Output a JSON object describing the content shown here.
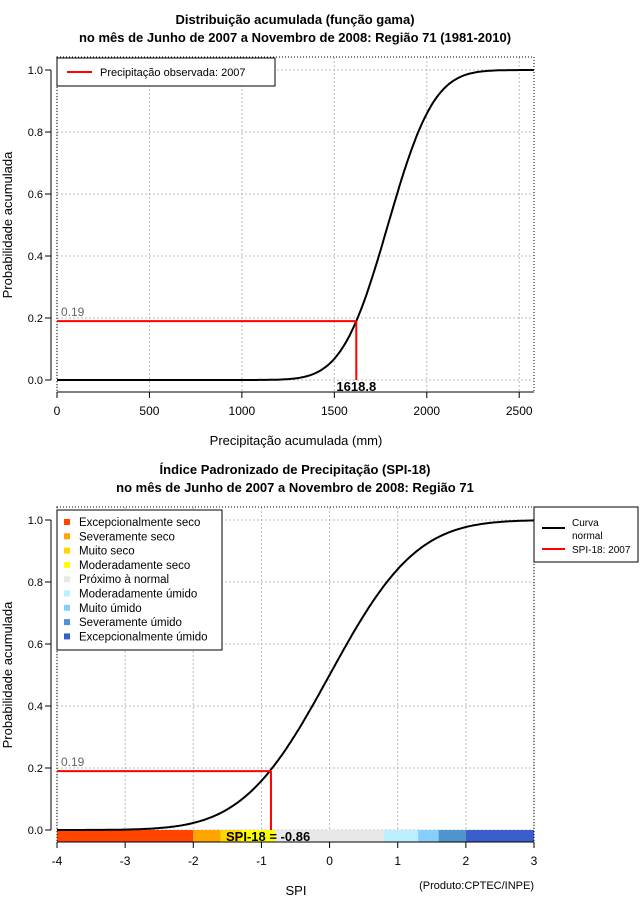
{
  "chart_data": [
    {
      "type": "line",
      "title": "Distribuição acumulada (função gama)",
      "subtitle": "no mês de Junho de 2007 a Novembro de 2008: Região 71 (1981-2010)",
      "xlabel": "Precipitação acumulada (mm)",
      "ylabel": "Probabilidade acumulada",
      "xlim": [
        0,
        2580
      ],
      "ylim": [
        0,
        1
      ],
      "xticks": [
        "0",
        "500",
        "1000",
        "1500",
        "2000",
        "2500"
      ],
      "yticks": [
        "0.0",
        "0.2",
        "0.4",
        "0.6",
        "0.8",
        "1.0"
      ],
      "grid": true,
      "curve": {
        "distribution": "cumulative",
        "approx_mean": 1790,
        "approx_sd": 195
      },
      "legend": {
        "placement": "top-left",
        "entries": [
          {
            "label": "Precipitação observada: 2007",
            "color": "#FF0000"
          }
        ]
      },
      "observed": {
        "x": 1618.8,
        "x_label": "1618.8",
        "p": 0.19,
        "p_label": "0.19"
      }
    },
    {
      "type": "line",
      "title": "Índice Padronizado de Precipitação (SPI-18)",
      "subtitle": "no mês de Junho de 2007 a Novembro de 2008: Região 71",
      "xlabel": "SPI",
      "ylabel": "Probabilidade acumulada",
      "xlim": [
        -4,
        3
      ],
      "ylim": [
        0,
        1
      ],
      "xticks": [
        "-4",
        "-3",
        "-2",
        "-1",
        "0",
        "1",
        "2",
        "3"
      ],
      "yticks": [
        "0.0",
        "0.2",
        "0.4",
        "0.6",
        "0.8",
        "1.0"
      ],
      "grid": true,
      "legend_right": {
        "placement": "top-right",
        "entries": [
          {
            "label": "Curva",
            "label2": "normal",
            "color": "#000000"
          },
          {
            "label": "SPI-18: 2007",
            "color": "#FF0000"
          }
        ]
      },
      "categories": [
        {
          "label": "Excepcionalmente seco",
          "from": -4,
          "to": -2,
          "color": "#FF4500"
        },
        {
          "label": "Severamente seco",
          "from": -2,
          "to": -1.6,
          "color": "#FFA500"
        },
        {
          "label": "Muito seco",
          "from": -1.6,
          "to": -1.3,
          "color": "#FFD700"
        },
        {
          "label": "Moderadamente seco",
          "from": -1.3,
          "to": -0.8,
          "color": "#FFFF00"
        },
        {
          "label": "Próximo à normal",
          "from": -0.8,
          "to": 0.8,
          "color": "#E8E8E8"
        },
        {
          "label": "Moderadamente úmido",
          "from": 0.8,
          "to": 1.3,
          "color": "#BBEEFF"
        },
        {
          "label": "Muito úmido",
          "from": 1.3,
          "to": 1.6,
          "color": "#87CEFA"
        },
        {
          "label": "Severamente úmido",
          "from": 1.6,
          "to": 2,
          "color": "#4F94CD"
        },
        {
          "label": "Excepcionalmente úmido",
          "from": 2,
          "to": 3,
          "color": "#3A5FCD"
        }
      ],
      "observed": {
        "x": -0.86,
        "p": 0.19,
        "p_label": "0.19",
        "annotation": "SPI-18 = -0.86"
      },
      "footer": "(Produto:CPTEC/INPE)"
    }
  ]
}
